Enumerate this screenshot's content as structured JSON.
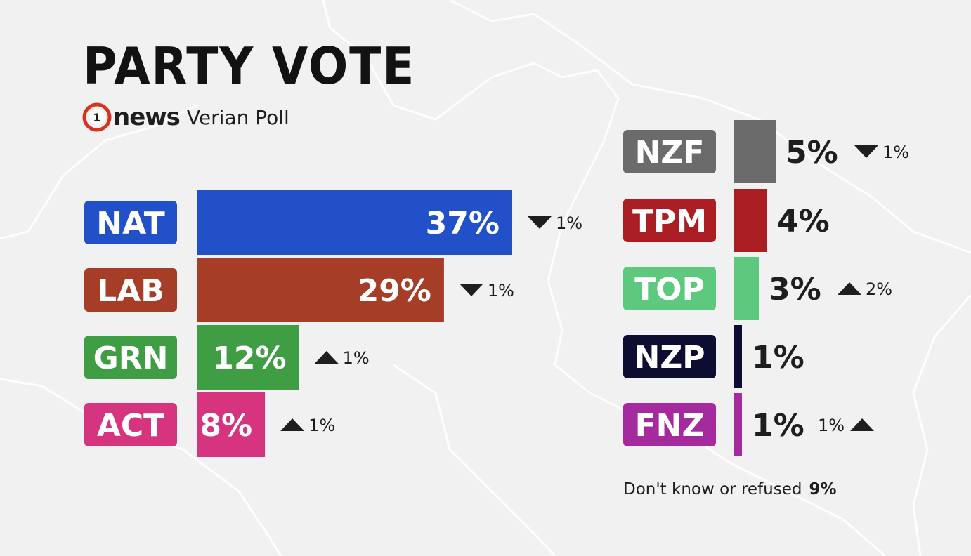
{
  "title": "PARTY VOTE",
  "brand": {
    "logo_glyph": "1",
    "name": "news",
    "subtitle": "Verian Poll"
  },
  "footnote": {
    "label": "Don't know or refused",
    "value": "9%"
  },
  "colors": {
    "background": "#f1f1f2",
    "NAT": "#2150c9",
    "LAB": "#a63d26",
    "GRN": "#3f9e43",
    "ACT": "#d6347f",
    "NZF": "#6b6b6b",
    "TPM": "#ab1e23",
    "TOP": "#5cc97e",
    "NZP": "#0d0d32",
    "FNZ": "#a52a9e"
  },
  "chart_data": [
    {
      "type": "bar",
      "orientation": "horizontal",
      "categories": [
        "NAT",
        "LAB",
        "GRN",
        "ACT"
      ],
      "values": [
        37,
        29,
        12,
        8
      ],
      "value_labels": [
        "37%",
        "29%",
        "12%",
        "8%"
      ],
      "changes": [
        {
          "direction": "down",
          "text": "1%"
        },
        {
          "direction": "down",
          "text": "1%"
        },
        {
          "direction": "up",
          "text": "1%"
        },
        {
          "direction": "up",
          "text": "1%"
        }
      ]
    },
    {
      "type": "bar",
      "orientation": "horizontal",
      "categories": [
        "NZF",
        "TPM",
        "TOP",
        "NZP",
        "FNZ"
      ],
      "values": [
        5,
        4,
        3,
        1,
        1
      ],
      "value_labels": [
        "5%",
        "4%",
        "3%",
        "1%",
        "1%"
      ],
      "changes": [
        {
          "direction": "down",
          "text": "1%"
        },
        null,
        {
          "direction": "up",
          "text": "2%"
        },
        null,
        {
          "direction": "up",
          "text": "1%"
        }
      ]
    }
  ]
}
